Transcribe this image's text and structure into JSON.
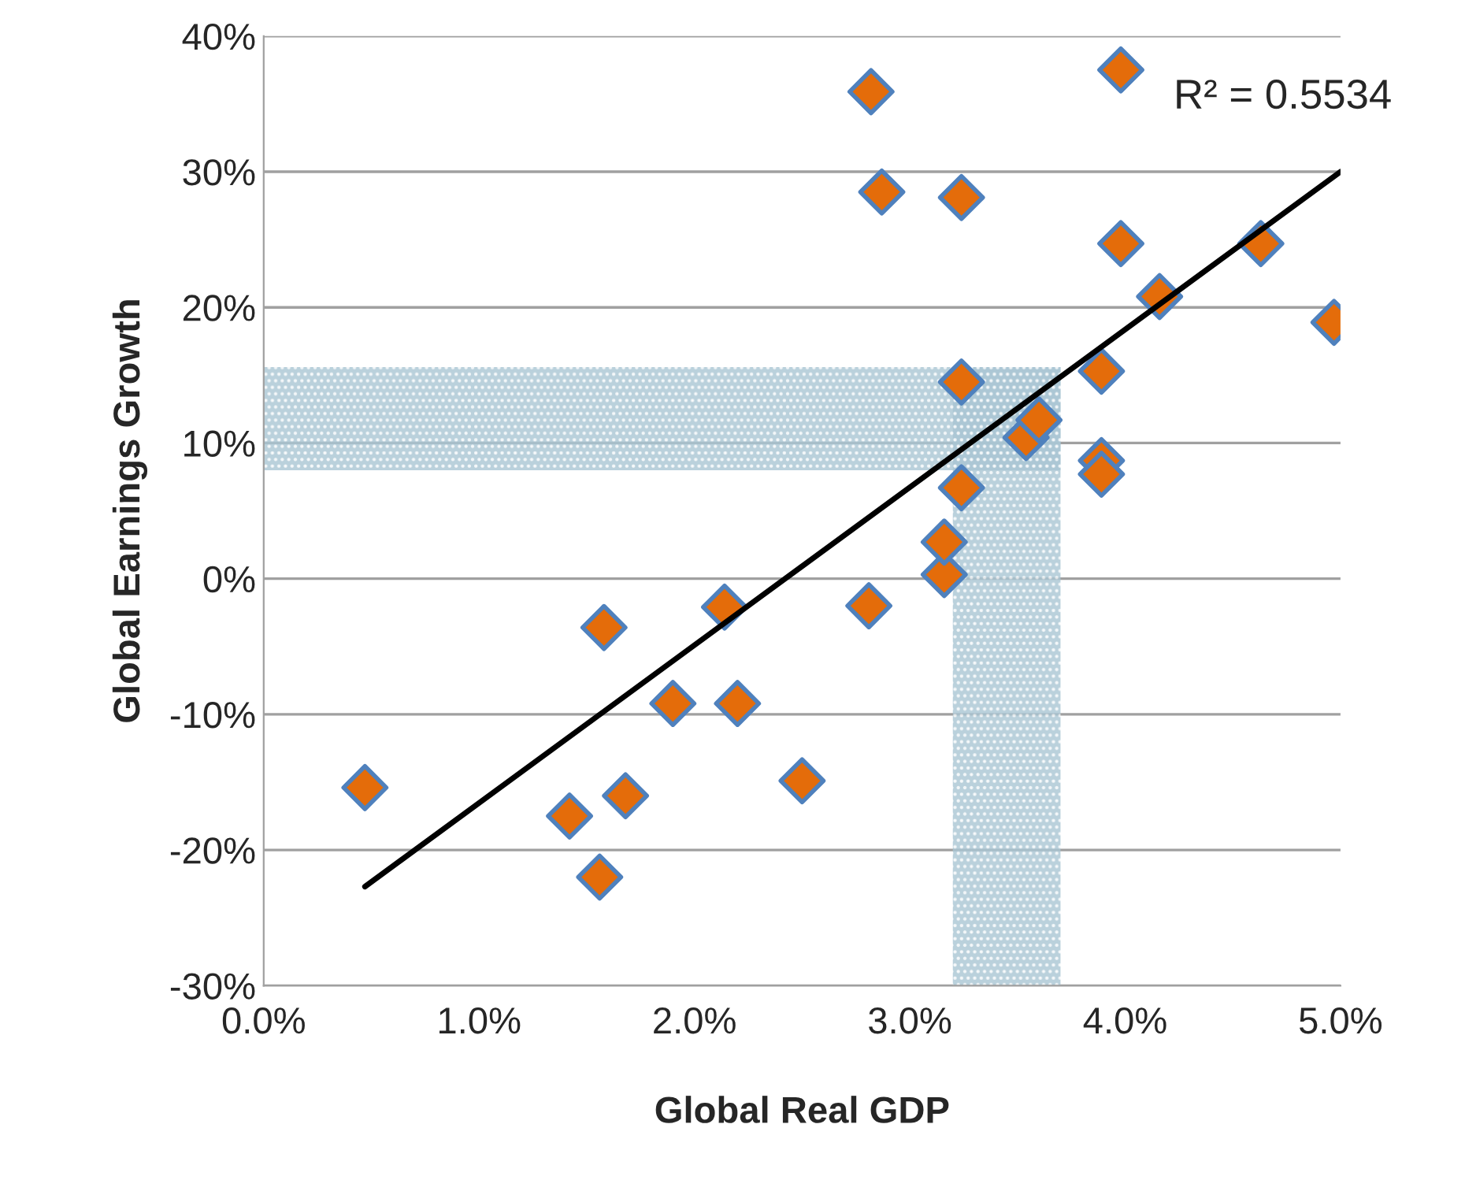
{
  "chart_data": {
    "type": "scatter",
    "xlabel": "Global Real GDP",
    "ylabel": "Global Earnings Growth",
    "annotations": [
      "R² = 0.5534"
    ],
    "xlim": [
      0,
      5
    ],
    "ylim": [
      -30,
      40
    ],
    "xticks": [
      {
        "value": 0,
        "label": "0.0%"
      },
      {
        "value": 1,
        "label": "1.0%"
      },
      {
        "value": 2,
        "label": "2.0%"
      },
      {
        "value": 3,
        "label": "3.0%"
      },
      {
        "value": 4,
        "label": "4.0%"
      },
      {
        "value": 5,
        "label": "5.0%"
      }
    ],
    "yticks": [
      {
        "value": -30,
        "label": "-30%"
      },
      {
        "value": -20,
        "label": "-20%"
      },
      {
        "value": -10,
        "label": "-10%"
      },
      {
        "value": 0,
        "label": "0%"
      },
      {
        "value": 10,
        "label": "10%"
      },
      {
        "value": 20,
        "label": "20%"
      },
      {
        "value": 30,
        "label": "30%"
      },
      {
        "value": 40,
        "label": "40%"
      }
    ],
    "grid": "y",
    "bands": [
      {
        "axis": "x",
        "from": 3.2,
        "to": 3.7,
        "color": "#a9c5d3"
      },
      {
        "axis": "y",
        "from": 8,
        "to": 15.6,
        "color": "#a9c5d3"
      }
    ],
    "series": [
      {
        "marker": "diamond",
        "color": "#e46c0a",
        "x": [
          0.47,
          1.42,
          1.56,
          1.58,
          1.68,
          1.9,
          2.14,
          2.2,
          2.5,
          2.81,
          2.82,
          2.87,
          3.16,
          3.16,
          3.24,
          3.24,
          3.24,
          3.54,
          3.6,
          3.89,
          3.89,
          3.89,
          3.98,
          3.98,
          4.16,
          4.63,
          4.97
        ],
        "values": [
          -15.4,
          -17.5,
          -22.0,
          -3.6,
          -16.0,
          -9.2,
          -2.1,
          -9.2,
          -14.9,
          -2.0,
          35.9,
          28.5,
          0.3,
          2.7,
          28.1,
          14.5,
          6.7,
          10.4,
          11.7,
          15.3,
          8.7,
          7.7,
          37.5,
          24.7,
          20.8,
          24.7,
          18.9
        ]
      },
      {
        "type": "line",
        "marker": "none",
        "color": "#000000",
        "x": [
          0.47,
          5.0
        ],
        "values": [
          -22.7,
          30.0
        ]
      }
    ]
  }
}
